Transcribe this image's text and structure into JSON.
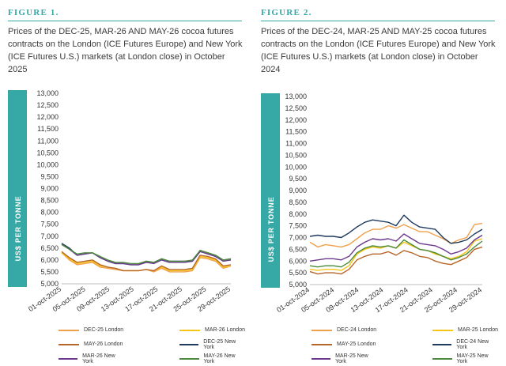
{
  "chart_data": [
    {
      "type": "line",
      "figure_label": "FIGURE 1.",
      "title": "Prices of the DEC-25, MAR-26 AND MAY-26 cocoa futures contracts on the London (ICE Futures Europe) and New York (ICE Futures U.S.) markets (at London close) in October 2025",
      "ylabel": "US$ PER TONNE",
      "xlabel": "",
      "ylim": [
        5000,
        13000
      ],
      "yticks": [
        "13,000",
        "12,500",
        "12,000",
        "11,500",
        "11,000",
        "10,500",
        "10,000",
        "9,500",
        "9,000",
        "8,500",
        "8,000",
        "7,500",
        "7,000",
        "6,500",
        "6,000",
        "5,500",
        "5,000"
      ],
      "xticks": [
        "01-oct-2025",
        "05-oct-2025",
        "09-oct-2025",
        "13-oct-2025",
        "17-oct-2025",
        "21-oct-2025",
        "25-oct-2025",
        "29-oct-2025"
      ],
      "x": [
        "01-oct",
        "02-oct",
        "03-oct",
        "06-oct",
        "07-oct",
        "08-oct",
        "09-oct",
        "10-oct",
        "13-oct",
        "14-oct",
        "15-oct",
        "16-oct",
        "17-oct",
        "20-oct",
        "21-oct",
        "22-oct",
        "23-oct",
        "24-oct",
        "27-oct",
        "28-oct",
        "29-oct",
        "30-oct",
        "31-oct"
      ],
      "series": [
        {
          "name": "DEC-25 London",
          "color": "#f0a04b",
          "values": [
            6300,
            6000,
            5800,
            5850,
            5900,
            5700,
            5650,
            5600,
            5550,
            5550,
            5550,
            5600,
            5500,
            5650,
            5500,
            5500,
            5500,
            5550,
            6100,
            6050,
            5950,
            5650,
            5750
          ]
        },
        {
          "name": "MAR-26 London",
          "color": "#f5c518",
          "values": [
            6300,
            6050,
            5850,
            5900,
            5950,
            5750,
            5700,
            5650,
            5550,
            5550,
            5550,
            5600,
            5550,
            5700,
            5550,
            5550,
            5550,
            5600,
            6150,
            6100,
            6000,
            5700,
            5750
          ]
        },
        {
          "name": "MAY-26 London",
          "color": "#b8652a",
          "values": [
            6350,
            6100,
            5900,
            5950,
            6000,
            5800,
            5700,
            5650,
            5550,
            5550,
            5550,
            5600,
            5550,
            5750,
            5600,
            5600,
            5600,
            5650,
            6200,
            6150,
            6050,
            5750,
            5800
          ]
        },
        {
          "name": "DEC-25 New York",
          "color": "#1f3a5f",
          "values": [
            6700,
            6500,
            6200,
            6250,
            6300,
            6100,
            5950,
            5850,
            5850,
            5800,
            5800,
            5950,
            5900,
            6050,
            5950,
            5950,
            5950,
            5950,
            6400,
            6300,
            6200,
            6000,
            6050
          ]
        },
        {
          "name": "MAR-26 New York",
          "color": "#6b3a8f",
          "values": [
            6650,
            6450,
            6200,
            6250,
            6300,
            6100,
            5950,
            5850,
            5850,
            5800,
            5800,
            5900,
            5850,
            6000,
            5900,
            5900,
            5900,
            5950,
            6350,
            6250,
            6150,
            5950,
            6000
          ]
        },
        {
          "name": "MAY-26 New York",
          "color": "#4a8a3a",
          "values": [
            6650,
            6450,
            6250,
            6300,
            6300,
            6150,
            6000,
            5900,
            5900,
            5850,
            5850,
            5950,
            5900,
            6050,
            5950,
            5950,
            5950,
            6000,
            6400,
            6300,
            6200,
            6000,
            6050
          ]
        }
      ]
    },
    {
      "type": "line",
      "figure_label": "FIGURE 2.",
      "title": "Prices of the DEC-24, MAR-25 AND MAY-25  cocoa futures contracts on the London (ICE Futures Europe) and New York (ICE Futures U.S.) markets (at London close) in October 2024",
      "ylabel": "US$ PER TONNE",
      "xlabel": "",
      "ylim": [
        5000,
        13000
      ],
      "yticks": [
        "13,000",
        "12,500",
        "12,000",
        "11,500",
        "11,000",
        "10,500",
        "10,000",
        "9,500",
        "9,000",
        "8,500",
        "8,000",
        "7,500",
        "7,000",
        "6,500",
        "6,000",
        "5,500",
        "5,000"
      ],
      "xticks": [
        "01-oct-2024",
        "05-oct-2024",
        "09-oct-2024",
        "13-oct-2024",
        "17-oct-2024",
        "21-oct-2024",
        "25-oct-2024",
        "29-oct-2024"
      ],
      "x": [
        "01-oct",
        "02-oct",
        "03-oct",
        "04-oct",
        "07-oct",
        "08-oct",
        "09-oct",
        "10-oct",
        "11-oct",
        "14-oct",
        "15-oct",
        "16-oct",
        "17-oct",
        "18-oct",
        "21-oct",
        "22-oct",
        "23-oct",
        "24-oct",
        "25-oct",
        "28-oct",
        "29-oct",
        "30-oct",
        "31-oct"
      ],
      "series": [
        {
          "name": "DEC-24 London",
          "color": "#f0a04b",
          "values": [
            6800,
            6600,
            6700,
            6650,
            6600,
            6700,
            6950,
            7200,
            7350,
            7350,
            7500,
            7400,
            7550,
            7400,
            7250,
            7250,
            7100,
            6950,
            6750,
            6900,
            7000,
            7550,
            7600
          ]
        },
        {
          "name": "MAR-25 London",
          "color": "#f5c518",
          "values": [
            5650,
            5600,
            5650,
            5650,
            5600,
            5800,
            6300,
            6500,
            6600,
            6550,
            6650,
            6550,
            6800,
            6650,
            6500,
            6450,
            6300,
            6200,
            6100,
            6200,
            6400,
            6850,
            6950
          ]
        },
        {
          "name": "MAY-25 London",
          "color": "#b8652a",
          "values": [
            5550,
            5450,
            5500,
            5500,
            5450,
            5650,
            6050,
            6200,
            6300,
            6300,
            6400,
            6250,
            6450,
            6350,
            6200,
            6150,
            6000,
            5900,
            5850,
            6000,
            6150,
            6500,
            6600
          ]
        },
        {
          "name": "DEC-24 New York",
          "color": "#1f3a5f",
          "values": [
            7050,
            7100,
            7050,
            7050,
            7000,
            7200,
            7450,
            7650,
            7750,
            7700,
            7650,
            7500,
            7950,
            7650,
            7450,
            7400,
            7350,
            7000,
            6750,
            6800,
            6900,
            7150,
            7350
          ]
        },
        {
          "name": "MAR-25 New York",
          "color": "#6b3a8f",
          "values": [
            6000,
            6050,
            6100,
            6100,
            6050,
            6200,
            6600,
            6800,
            6950,
            6900,
            6950,
            6850,
            7150,
            6950,
            6750,
            6700,
            6650,
            6500,
            6300,
            6400,
            6550,
            6900,
            7100
          ]
        },
        {
          "name": "MAY-25 New York",
          "color": "#4a8a3a",
          "values": [
            5800,
            5750,
            5800,
            5800,
            5750,
            5950,
            6350,
            6550,
            6650,
            6600,
            6650,
            6550,
            6900,
            6700,
            6500,
            6450,
            6350,
            6200,
            6050,
            6150,
            6300,
            6600,
            6850
          ]
        }
      ]
    }
  ]
}
